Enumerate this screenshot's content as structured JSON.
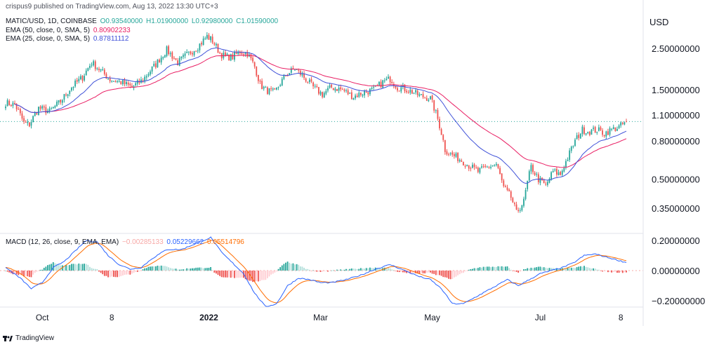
{
  "header": {
    "publisher": "crispus9 published on TradingView.com, Aug 13, 2022 13:30 UTC+3",
    "symbol": "MATIC/USD, 1D, COINBASE",
    "ohlc": {
      "o": "O0.93540000",
      "h": "H1.01900000",
      "l": "L0.92980000",
      "c": "C1.01590000"
    },
    "ema50": {
      "label": "EMA (50, close, 0, SMA, 5)",
      "value": "0.80902233"
    },
    "ema25": {
      "label": "EMA (25, close, 0, SMA, 5)",
      "value": "0.87811112"
    },
    "macd": {
      "label": "MACD (12, 26, close, 9, EMA, EMA)",
      "hist": "−0.00285133",
      "macd": "0.05229662",
      "signal": "0.05514796"
    }
  },
  "colors": {
    "up": "#26a69a",
    "down": "#ef5350",
    "ema25": "#3f51d8",
    "ema50": "#e91e63",
    "macd": "#2962ff",
    "signal": "#ff6d00",
    "hist_up": "#26a69a",
    "hist_down": "#ef5350",
    "grid": "#f0f3fa",
    "text": "#131722",
    "dotted": "#26a69a"
  },
  "chart_data": {
    "type": "candlestick",
    "currency": "USD",
    "scale": "log",
    "grid": false,
    "price_ticks": [
      {
        "v": 2.5,
        "label": "2.50000000"
      },
      {
        "v": 1.5,
        "label": "1.50000000"
      },
      {
        "v": 1.1,
        "label": "1.10000000"
      },
      {
        "v": 0.8,
        "label": "0.80000000"
      },
      {
        "v": 0.5,
        "label": "0.50000000"
      },
      {
        "v": 0.35,
        "label": "0.35000000"
      }
    ],
    "macd_ticks": [
      {
        "v": 0.2,
        "label": "0.20000000"
      },
      {
        "v": 0.0,
        "label": "0.00000000"
      },
      {
        "v": -0.2,
        "label": "−0.20000000"
      }
    ],
    "x_labels": [
      {
        "i": 20,
        "label": "Oct",
        "bold": false
      },
      {
        "i": 58,
        "label": "8",
        "bold": false
      },
      {
        "i": 111,
        "label": "2022",
        "bold": true
      },
      {
        "i": 172,
        "label": "Mar",
        "bold": false
      },
      {
        "i": 233,
        "label": "May",
        "bold": false
      },
      {
        "i": 292,
        "label": "Jul",
        "bold": false
      },
      {
        "i": 336,
        "label": "8",
        "bold": false
      }
    ],
    "last_price": 1.0159,
    "close_anchors": [
      [
        0,
        1.28
      ],
      [
        5,
        1.25
      ],
      [
        10,
        1.0
      ],
      [
        13,
        0.98
      ],
      [
        18,
        1.2
      ],
      [
        24,
        1.15
      ],
      [
        30,
        1.3
      ],
      [
        36,
        1.55
      ],
      [
        42,
        1.75
      ],
      [
        47,
        2.1
      ],
      [
        52,
        1.9
      ],
      [
        57,
        1.7
      ],
      [
        63,
        1.65
      ],
      [
        69,
        1.55
      ],
      [
        75,
        1.7
      ],
      [
        82,
        2.05
      ],
      [
        88,
        2.45
      ],
      [
        94,
        2.1
      ],
      [
        100,
        2.35
      ],
      [
        105,
        2.55
      ],
      [
        110,
        2.9
      ],
      [
        113,
        2.75
      ],
      [
        117,
        2.35
      ],
      [
        120,
        2.25
      ],
      [
        124,
        2.25
      ],
      [
        128,
        2.4
      ],
      [
        132,
        2.35
      ],
      [
        136,
        2.0
      ],
      [
        139,
        1.6
      ],
      [
        142,
        1.5
      ],
      [
        147,
        1.45
      ],
      [
        153,
        1.8
      ],
      [
        158,
        1.95
      ],
      [
        163,
        1.75
      ],
      [
        168,
        1.55
      ],
      [
        173,
        1.42
      ],
      [
        178,
        1.55
      ],
      [
        184,
        1.5
      ],
      [
        190,
        1.38
      ],
      [
        195,
        1.45
      ],
      [
        201,
        1.5
      ],
      [
        206,
        1.65
      ],
      [
        210,
        1.72
      ],
      [
        214,
        1.55
      ],
      [
        220,
        1.5
      ],
      [
        226,
        1.4
      ],
      [
        232,
        1.35
      ],
      [
        236,
        1.05
      ],
      [
        240,
        0.72
      ],
      [
        243,
        0.68
      ],
      [
        247,
        0.65
      ],
      [
        252,
        0.6
      ],
      [
        258,
        0.55
      ],
      [
        263,
        0.58
      ],
      [
        268,
        0.6
      ],
      [
        272,
        0.45
      ],
      [
        276,
        0.4
      ],
      [
        279,
        0.33
      ],
      [
        283,
        0.38
      ],
      [
        287,
        0.58
      ],
      [
        291,
        0.5
      ],
      [
        295,
        0.46
      ],
      [
        299,
        0.55
      ],
      [
        303,
        0.53
      ],
      [
        307,
        0.65
      ],
      [
        311,
        0.8
      ],
      [
        315,
        0.92
      ],
      [
        319,
        0.9
      ],
      [
        323,
        0.92
      ],
      [
        327,
        0.88
      ],
      [
        331,
        0.92
      ],
      [
        335,
        0.95
      ],
      [
        339,
        1.0159
      ]
    ],
    "macd_anchors": [
      [
        0,
        0.02
      ],
      [
        8,
        -0.05
      ],
      [
        14,
        -0.12
      ],
      [
        20,
        -0.08
      ],
      [
        26,
        0.02
      ],
      [
        32,
        0.06
      ],
      [
        38,
        0.13
      ],
      [
        44,
        0.2
      ],
      [
        50,
        0.19
      ],
      [
        56,
        0.1
      ],
      [
        62,
        0.04
      ],
      [
        68,
        0.01
      ],
      [
        74,
        0.02
      ],
      [
        80,
        0.08
      ],
      [
        88,
        0.14
      ],
      [
        96,
        0.14
      ],
      [
        104,
        0.18
      ],
      [
        112,
        0.22
      ],
      [
        118,
        0.12
      ],
      [
        124,
        0.05
      ],
      [
        130,
        -0.02
      ],
      [
        136,
        -0.15
      ],
      [
        142,
        -0.24
      ],
      [
        148,
        -0.22
      ],
      [
        154,
        -0.1
      ],
      [
        160,
        -0.05
      ],
      [
        166,
        -0.06
      ],
      [
        172,
        -0.08
      ],
      [
        178,
        -0.08
      ],
      [
        186,
        -0.06
      ],
      [
        194,
        -0.03
      ],
      [
        202,
        0.01
      ],
      [
        210,
        0.04
      ],
      [
        218,
        0.0
      ],
      [
        226,
        -0.04
      ],
      [
        232,
        -0.06
      ],
      [
        238,
        -0.12
      ],
      [
        244,
        -0.22
      ],
      [
        250,
        -0.22
      ],
      [
        256,
        -0.18
      ],
      [
        262,
        -0.14
      ],
      [
        268,
        -0.1
      ],
      [
        274,
        -0.06
      ],
      [
        280,
        -0.1
      ],
      [
        286,
        -0.06
      ],
      [
        292,
        -0.02
      ],
      [
        298,
        0.0
      ],
      [
        304,
        0.02
      ],
      [
        310,
        0.05
      ],
      [
        316,
        0.1
      ],
      [
        322,
        0.11
      ],
      [
        328,
        0.09
      ],
      [
        334,
        0.07
      ],
      [
        340,
        0.05
      ]
    ]
  }
}
